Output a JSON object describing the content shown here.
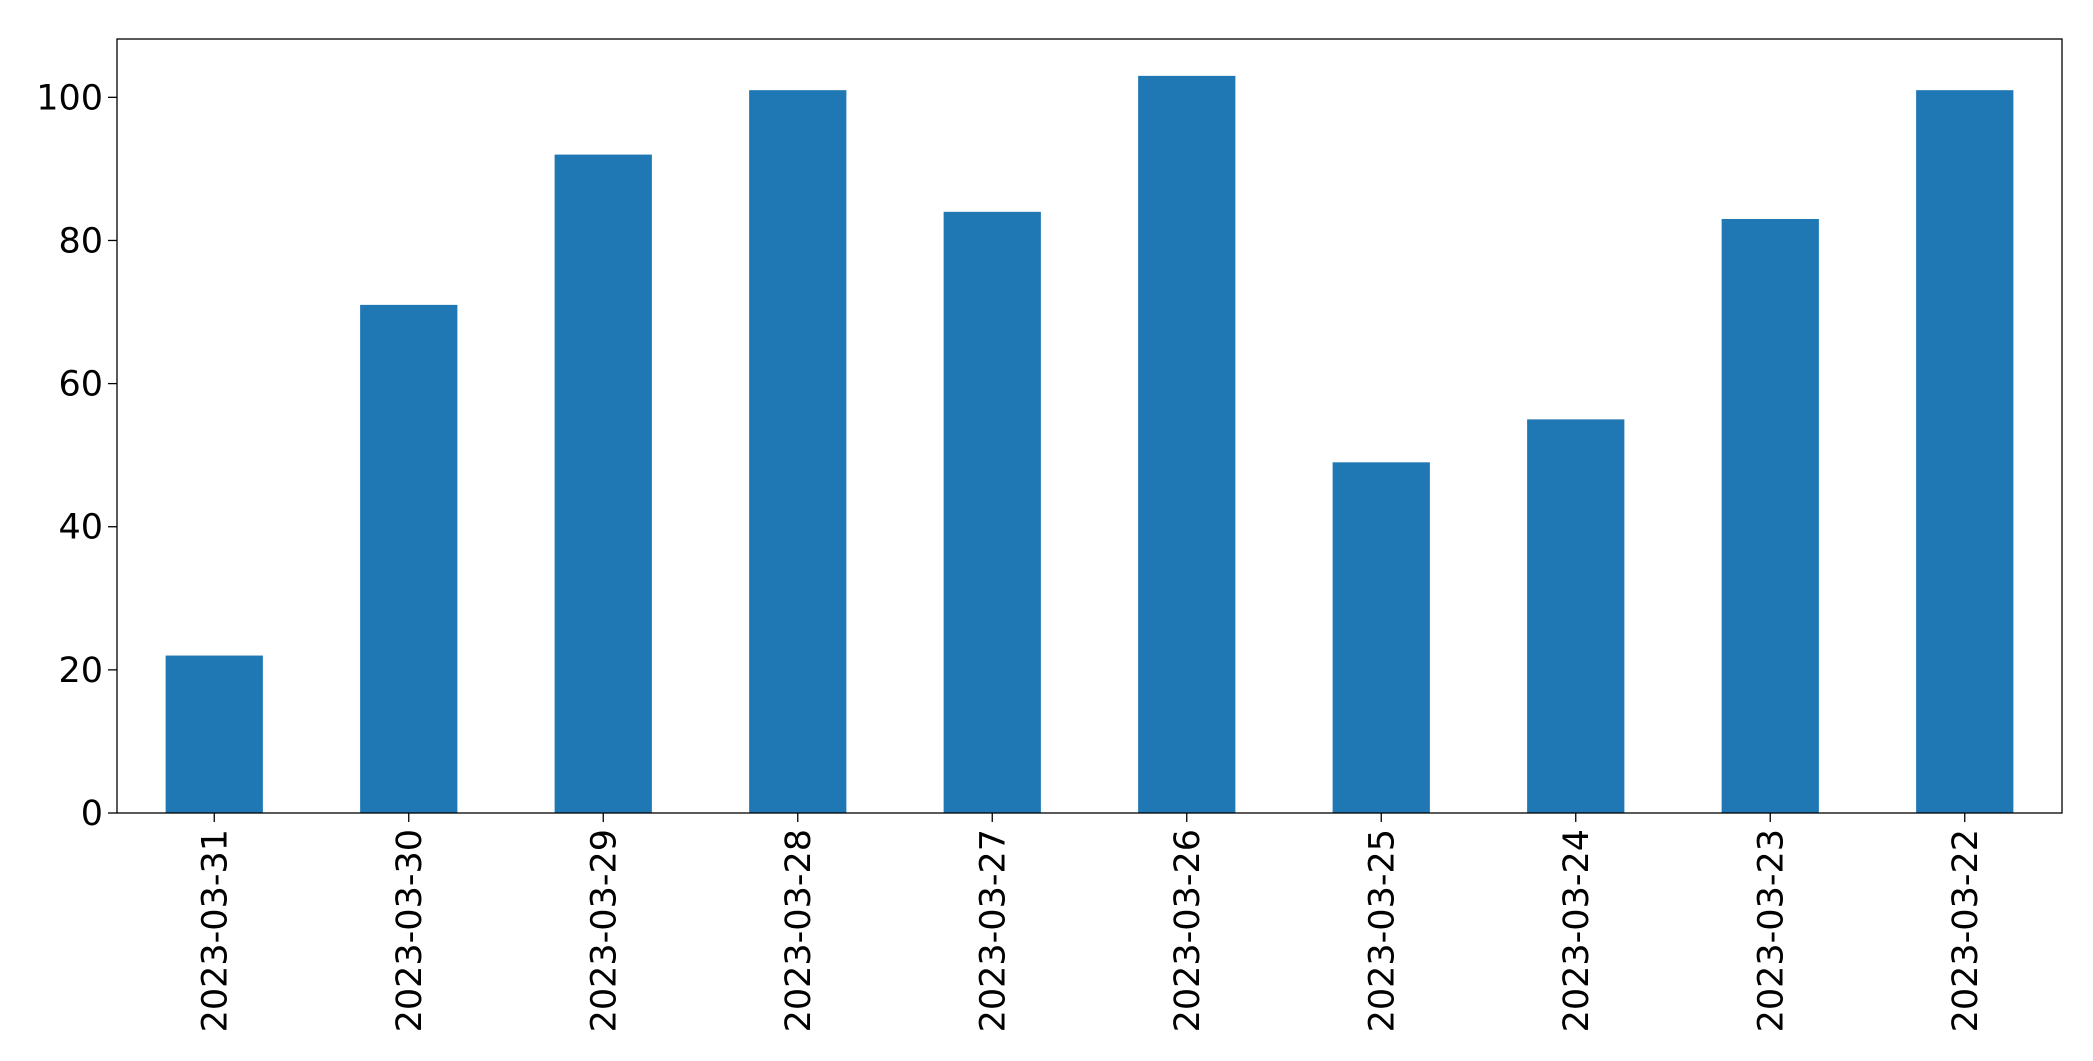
{
  "chart_data": {
    "type": "bar",
    "categories": [
      "2023-03-31",
      "2023-03-30",
      "2023-03-29",
      "2023-03-28",
      "2023-03-27",
      "2023-03-26",
      "2023-03-25",
      "2023-03-24",
      "2023-03-23",
      "2023-03-22"
    ],
    "values": [
      22,
      71,
      92,
      101,
      84,
      103,
      49,
      55,
      83,
      101
    ],
    "color": "#1f77b4",
    "ylim": [
      0,
      108.15
    ],
    "yticks": [
      0,
      20,
      40,
      60,
      80,
      100
    ],
    "grid": false
  }
}
